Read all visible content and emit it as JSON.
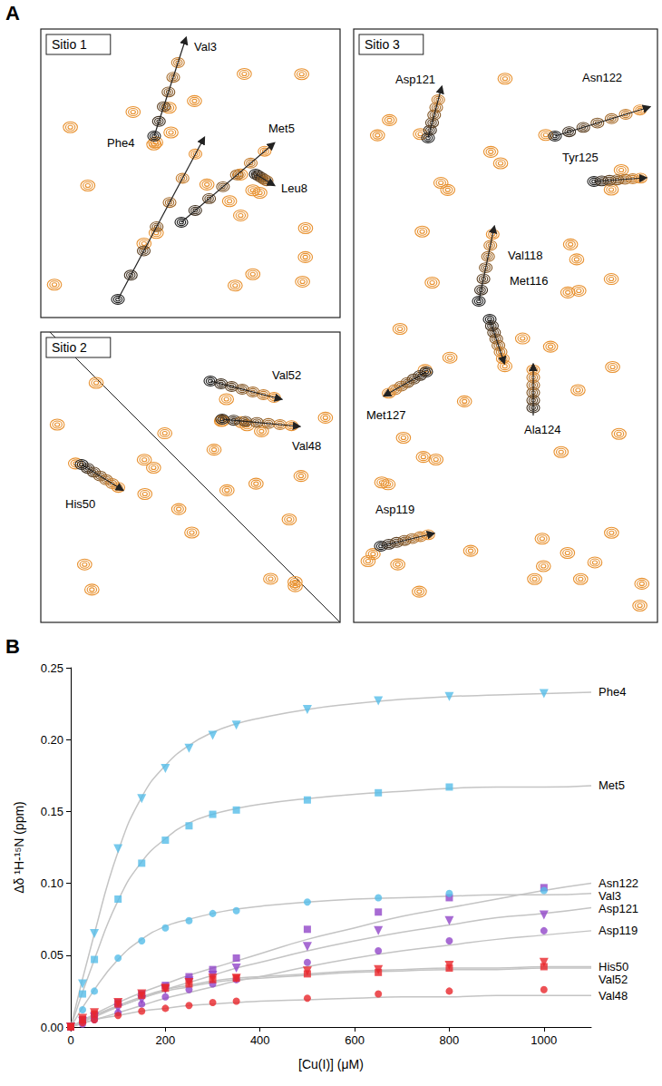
{
  "panel_a": {
    "panel": "A",
    "sites": [
      {
        "title": "Sitio 1",
        "residues": [
          "Val3",
          "Phe4",
          "Met5",
          "Leu8"
        ]
      },
      {
        "title": "Sitio 2",
        "residues": [
          "Val52",
          "Val48",
          "His50"
        ]
      },
      {
        "title": "Sitio 3",
        "residues": [
          "Asp121",
          "Asn122",
          "Tyr125",
          "Val118",
          "Met116",
          "Met127",
          "Ala124",
          "Asp119"
        ]
      }
    ]
  },
  "chart_data": {
    "type": "scatter",
    "panel": "B",
    "x_label": "[Cu(I)] (μM)",
    "y_label": "Δδ ¹H-¹⁵N (ppm)",
    "xlim": [
      0,
      1100
    ],
    "xticks": [
      0,
      200,
      400,
      600,
      800,
      1000
    ],
    "ylim": [
      0,
      0.25
    ],
    "yticks": [
      {
        "value": 0,
        "label": "0.00"
      },
      {
        "value": 0.05,
        "label": "0.05"
      },
      {
        "value": 0.1,
        "label": "0.10"
      },
      {
        "value": 0.15,
        "label": "0.15"
      },
      {
        "value": 0.2,
        "label": "0.20"
      },
      {
        "value": 0.25,
        "label": "0.25"
      }
    ],
    "grid": false,
    "x": [
      0,
      25,
      50,
      100,
      150,
      200,
      250,
      300,
      350,
      500,
      650,
      800,
      1000
    ],
    "fit_x": [
      0,
      50,
      100,
      150,
      200,
      250,
      300,
      350,
      400,
      500,
      600,
      700,
      800,
      900,
      1000,
      1100
    ],
    "series": [
      {
        "name": "Phe4",
        "color": "#55bde9",
        "marker": "triangle-down",
        "values": [
          0,
          0.03,
          0.065,
          0.124,
          0.159,
          0.18,
          0.194,
          0.203,
          0.21,
          0.221,
          0.227,
          0.23,
          0.232
        ],
        "fit": [
          0,
          0.065,
          0.122,
          0.16,
          0.182,
          0.196,
          0.205,
          0.211,
          0.215,
          0.221,
          0.225,
          0.228,
          0.23,
          0.231,
          0.232,
          0.233
        ]
      },
      {
        "name": "Met5",
        "color": "#55bde9",
        "marker": "square",
        "values": [
          0,
          0.023,
          0.047,
          0.089,
          0.114,
          0.13,
          0.14,
          0.148,
          0.151,
          0.158,
          0.163,
          0.167,
          null
        ],
        "fit": [
          0,
          0.047,
          0.088,
          0.115,
          0.131,
          0.142,
          0.148,
          0.152,
          0.155,
          0.159,
          0.162,
          0.164,
          0.166,
          0.167,
          0.167,
          0.168
        ]
      },
      {
        "name": "Asn122",
        "color": "#9146c8",
        "marker": "square",
        "values": [
          0,
          0.005,
          0.008,
          0.017,
          0.023,
          0.029,
          0.035,
          0.04,
          0.048,
          0.068,
          0.08,
          0.09,
          0.097
        ],
        "fit": [
          0,
          0.009,
          0.017,
          0.024,
          0.03,
          0.036,
          0.041,
          0.046,
          0.051,
          0.061,
          0.069,
          0.077,
          0.083,
          0.089,
          0.095,
          0.1
        ]
      },
      {
        "name": "Val3",
        "color": "#55bde9",
        "marker": "circle",
        "values": [
          0,
          0.012,
          0.025,
          0.048,
          0.06,
          0.069,
          0.074,
          0.079,
          0.081,
          0.087,
          0.09,
          0.093,
          0.095
        ],
        "fit": [
          0,
          0.026,
          0.047,
          0.061,
          0.07,
          0.075,
          0.079,
          0.082,
          0.084,
          0.087,
          0.089,
          0.09,
          0.091,
          0.092,
          0.092,
          0.093
        ]
      },
      {
        "name": "Asp121",
        "color": "#9146c8",
        "marker": "triangle-down",
        "values": [
          0,
          0.004,
          0.007,
          0.013,
          0.019,
          0.026,
          0.032,
          0.036,
          0.041,
          0.056,
          0.067,
          0.074,
          0.078
        ],
        "fit": [
          0,
          0.007,
          0.014,
          0.02,
          0.026,
          0.031,
          0.036,
          0.041,
          0.045,
          0.053,
          0.06,
          0.066,
          0.071,
          0.076,
          0.079,
          0.083
        ]
      },
      {
        "name": "Asp119",
        "color": "#9146c8",
        "marker": "circle",
        "values": [
          0,
          0.002,
          0.005,
          0.01,
          0.016,
          0.021,
          0.026,
          0.03,
          0.033,
          0.045,
          0.053,
          0.06,
          0.067
        ],
        "fit": [
          0,
          0.005,
          0.01,
          0.015,
          0.02,
          0.024,
          0.028,
          0.032,
          0.035,
          0.042,
          0.048,
          0.053,
          0.057,
          0.061,
          0.064,
          0.067
        ]
      },
      {
        "name": "His50",
        "color": "#e8262a",
        "marker": "triangle-down",
        "values": [
          0,
          0.006,
          0.01,
          0.017,
          0.023,
          0.027,
          0.031,
          0.034,
          0.034,
          0.039,
          0.04,
          0.043,
          0.045
        ],
        "fit": [
          0,
          0.008,
          0.015,
          0.021,
          0.026,
          0.029,
          0.032,
          0.034,
          0.035,
          0.037,
          0.039,
          0.04,
          0.041,
          0.041,
          0.042,
          0.042
        ]
      },
      {
        "name": "Val52",
        "color": "#e8262a",
        "marker": "square",
        "values": [
          0,
          0.005,
          0.009,
          0.016,
          0.022,
          0.027,
          0.03,
          0.033,
          0.034,
          0.037,
          0.038,
          0.041,
          0.042
        ],
        "fit": [
          0,
          0.008,
          0.014,
          0.02,
          0.025,
          0.028,
          0.031,
          0.033,
          0.034,
          0.036,
          0.038,
          0.039,
          0.04,
          0.04,
          0.041,
          0.041
        ]
      },
      {
        "name": "Val48",
        "color": "#e8262a",
        "marker": "circle",
        "values": [
          0,
          0.003,
          0.005,
          0.008,
          0.011,
          0.013,
          0.015,
          0.017,
          0.018,
          0.02,
          0.023,
          0.025,
          0.026
        ],
        "fit": [
          0,
          0.005,
          0.008,
          0.011,
          0.013,
          0.015,
          0.016,
          0.017,
          0.018,
          0.019,
          0.02,
          0.021,
          0.021,
          0.022,
          0.022,
          0.022
        ]
      }
    ]
  }
}
